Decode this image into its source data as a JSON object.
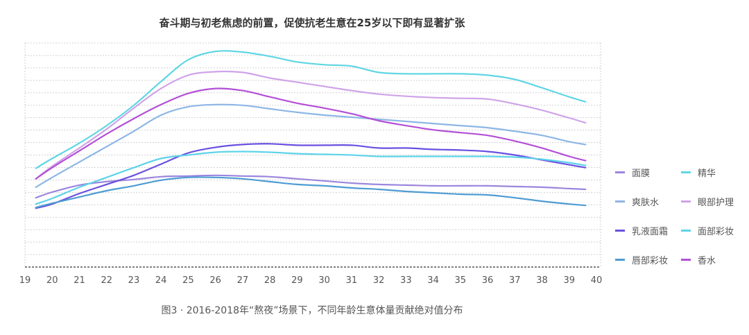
{
  "chart_data": {
    "type": "line",
    "title": "奋斗期与初老焦虑的前置，促使抗老生意在25岁以下即有显著扩张",
    "caption": "图3 · 2016-2018年“熬夜”场景下，不同年龄生意体量贡献绝对值分布",
    "x_ticks": [
      "19",
      "20",
      "21",
      "22",
      "23",
      "24",
      "25",
      "26",
      "27",
      "28",
      "29",
      "30",
      "31",
      "32",
      "33",
      "34",
      "35",
      "36",
      "37",
      "38",
      "39",
      "40"
    ],
    "x_domain": [
      19,
      40
    ],
    "x": [
      19.4,
      20,
      21,
      22,
      23,
      24,
      25,
      26,
      27,
      28,
      29,
      30,
      31,
      32,
      33,
      34,
      35,
      36,
      37,
      38,
      39,
      39.6
    ],
    "ylim": [
      0,
      320
    ],
    "grid": true,
    "legend_position": "right",
    "series": [
      {
        "name": "面膜",
        "color": "#9b86dd",
        "values": [
          99,
          107,
          117,
          122,
          125,
          129,
          130,
          131,
          130,
          129,
          126,
          123,
          120,
          118,
          117,
          116,
          116,
          116,
          115,
          114,
          112,
          111
        ]
      },
      {
        "name": "精华",
        "color": "#5fd6e3",
        "values": [
          141,
          155,
          177,
          202,
          231,
          265,
          296,
          308,
          307,
          301,
          293,
          289,
          287,
          278,
          276,
          276,
          276,
          274,
          268,
          256,
          243,
          236
        ]
      },
      {
        "name": "爽肤水",
        "color": "#8db6e6",
        "values": [
          114,
          128,
          150,
          172,
          194,
          217,
          229,
          232,
          231,
          226,
          221,
          217,
          214,
          211,
          208,
          205,
          202,
          199,
          194,
          188,
          179,
          175
        ]
      },
      {
        "name": "眼部护理",
        "color": "#cfa3e8",
        "values": [
          126,
          144,
          170,
          197,
          227,
          255,
          274,
          279,
          278,
          270,
          264,
          258,
          252,
          247,
          244,
          242,
          241,
          240,
          233,
          224,
          213,
          206
        ]
      },
      {
        "name": "乳液面霜",
        "color": "#6a4fe0",
        "values": [
          84,
          90,
          105,
          118,
          131,
          147,
          163,
          171,
          175,
          176,
          174,
          174,
          174,
          170,
          170,
          168,
          167,
          165,
          160,
          153,
          146,
          142
        ]
      },
      {
        "name": "面部彩妆",
        "color": "#5ed3e8",
        "values": [
          90,
          98,
          114,
          128,
          142,
          155,
          160,
          164,
          165,
          164,
          162,
          161,
          160,
          158,
          158,
          158,
          158,
          158,
          157,
          154,
          149,
          145
        ]
      },
      {
        "name": "唇部彩妆",
        "color": "#4e9bd3",
        "values": [
          85,
          91,
          100,
          109,
          116,
          124,
          128,
          128,
          126,
          122,
          118,
          116,
          113,
          111,
          108,
          106,
          104,
          103,
          99,
          94,
          90,
          88
        ]
      },
      {
        "name": "香水",
        "color": "#b34fd6",
        "values": [
          126,
          142,
          166,
          190,
          212,
          232,
          248,
          255,
          252,
          243,
          234,
          227,
          219,
          209,
          202,
          196,
          192,
          188,
          180,
          170,
          158,
          152
        ]
      }
    ]
  }
}
